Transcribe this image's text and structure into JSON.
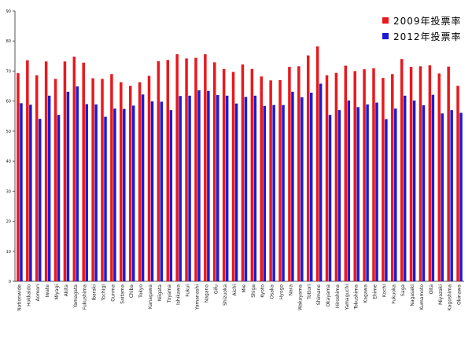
{
  "chart_data": {
    "type": "bar",
    "ylim": [
      0,
      90
    ],
    "yticks": [
      0,
      10,
      20,
      30,
      40,
      50,
      60,
      70,
      80,
      90
    ],
    "grid": false,
    "legend_position": "top-right",
    "categories": [
      "Nationwide",
      "Hokkaido",
      "Aomori",
      "Iwate",
      "Miyagi",
      "Akita",
      "Yamagata",
      "Fukushima",
      "Ibaraki",
      "Tochigi",
      "Gunma",
      "Saitama",
      "Chiba",
      "Tokyo",
      "Kanagawa",
      "Niigata",
      "Toyama",
      "Ishikawa",
      "Fukui",
      "Yamanashi",
      "Nagano",
      "Gifu",
      "Shizuoka",
      "Aichi",
      "Mie",
      "Shiga",
      "Kyoto",
      "Osaka",
      "Hyogo",
      "Nara",
      "Wakayama",
      "Tottori",
      "Shimane",
      "Okayama",
      "Hiroshima",
      "Yamaguchi",
      "Tokushima",
      "Kagawa",
      "Ehime",
      "Kochi",
      "Fukuoka",
      "Saga",
      "Nagasaki",
      "Kumamoto",
      "Oita",
      "Miyazaki",
      "Kagoshima",
      "Okinawa"
    ],
    "series": [
      {
        "name": "2009年投票率",
        "color": "#e8191e",
        "values": [
          69.3,
          73.6,
          68.6,
          73.2,
          67.4,
          73.2,
          74.8,
          72.8,
          67.6,
          67.4,
          69.0,
          66.3,
          65.1,
          66.3,
          68.4,
          73.3,
          73.7,
          75.6,
          74.2,
          74.4,
          75.6,
          72.9,
          70.7,
          69.7,
          72.2,
          70.7,
          68.2,
          66.9,
          67.0,
          71.4,
          71.6,
          75.2,
          78.2,
          68.6,
          69.4,
          71.8,
          70.0,
          70.6,
          70.9,
          67.7,
          69.0,
          74.0,
          71.4,
          71.6,
          71.9,
          69.2,
          71.5,
          65.1
        ]
      },
      {
        "name": "2012年投票率",
        "color": "#1b1bd6",
        "values": [
          59.3,
          58.8,
          54.1,
          61.8,
          55.4,
          63.1,
          64.9,
          59.0,
          58.9,
          54.8,
          57.5,
          57.4,
          58.5,
          62.2,
          59.9,
          59.8,
          57.0,
          61.7,
          61.8,
          63.6,
          63.4,
          62.0,
          61.8,
          59.2,
          61.4,
          61.8,
          58.4,
          58.7,
          58.7,
          63.1,
          61.3,
          62.8,
          65.8,
          55.4,
          57.0,
          60.2,
          58.0,
          58.9,
          59.5,
          54.0,
          57.5,
          61.8,
          60.2,
          58.6,
          62.1,
          55.9,
          57.0,
          56.1
        ]
      }
    ]
  }
}
